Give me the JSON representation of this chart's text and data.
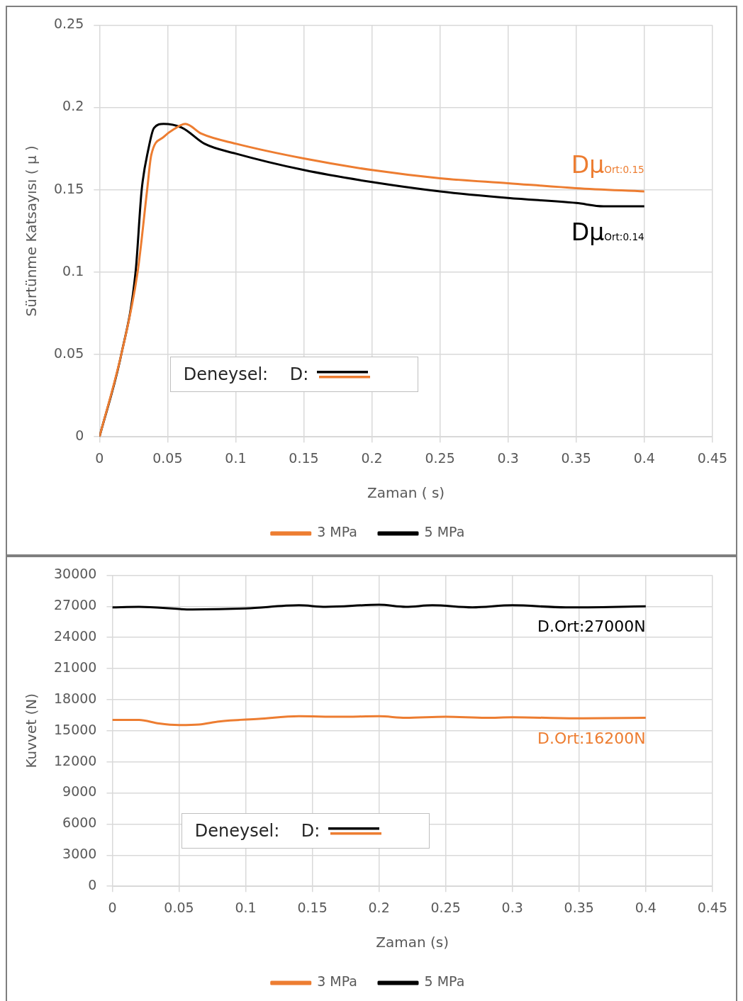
{
  "chart_data": [
    {
      "type": "line",
      "xlabel": "Zaman ( s)",
      "ylabel": "Sürtünme Katsayısı ( μ )",
      "xlim": [
        0,
        0.45
      ],
      "xticks": [
        0,
        0.05,
        0.1,
        0.15,
        0.2,
        0.25,
        0.3,
        0.35,
        0.4,
        0.45
      ],
      "ylim": [
        0,
        0.25
      ],
      "yticks": [
        0,
        0.05,
        0.1,
        0.15,
        0.2,
        0.25
      ],
      "grid": true,
      "legend": "bottom",
      "marker": "none",
      "line_style": "solid",
      "annotations": [
        {
          "text": "Dμ$_{Ort:0.15}$",
          "y": 0.15
        },
        {
          "text": "Dμ$_{Ort:0.14}$",
          "y": 0.14
        },
        "Deneysel:    D:"
      ],
      "series": [
        {
          "name": "3 MPa",
          "color": "#ed7d31",
          "x": [
            0,
            0.016,
            0.028,
            0.035,
            0.038,
            0.047,
            0.055,
            0.063,
            0.075,
            0.1,
            0.15,
            0.2,
            0.25,
            0.3,
            0.35,
            0.4
          ],
          "values": [
            0,
            0.05,
            0.1,
            0.15,
            0.171,
            0.182,
            0.187,
            0.19,
            0.184,
            0.178,
            0.169,
            0.162,
            0.157,
            0.154,
            0.151,
            0.149
          ]
        },
        {
          "name": "5 MPa",
          "color": "#000000",
          "x": [
            0,
            0.016,
            0.0265,
            0.031,
            0.036,
            0.04,
            0.047,
            0.061,
            0.077,
            0.1,
            0.15,
            0.2,
            0.25,
            0.3,
            0.35,
            0.37,
            0.4
          ],
          "values": [
            0,
            0.05,
            0.1,
            0.15,
            0.175,
            0.1875,
            0.19,
            0.1875,
            0.178,
            0.172,
            0.162,
            0.1547,
            0.149,
            0.145,
            0.142,
            0.14,
            0.14
          ]
        }
      ]
    },
    {
      "type": "line",
      "xlabel": "Zaman (s)",
      "ylabel": "Kuvvet (N)",
      "xlim": [
        0,
        0.45
      ],
      "xticks": [
        0,
        0.05,
        0.1,
        0.15,
        0.2,
        0.25,
        0.3,
        0.35,
        0.4,
        0.45
      ],
      "ylim": [
        0,
        30000
      ],
      "yticks": [
        0,
        3000,
        6000,
        9000,
        12000,
        15000,
        18000,
        21000,
        24000,
        27000,
        30000
      ],
      "grid": true,
      "legend": "bottom",
      "marker": "none",
      "line_style": "solid",
      "annotations": [
        {
          "text": "D.Ort:27000N",
          "y": 27000
        },
        {
          "text": "D.Ort:16200N",
          "y": 16200
        },
        "Deneysel:    D:"
      ],
      "series": [
        {
          "name": "3 MPa",
          "color": "#ed7d31",
          "x": [
            0,
            0.02,
            0.035,
            0.05,
            0.065,
            0.08,
            0.11,
            0.14,
            0.17,
            0.2,
            0.22,
            0.25,
            0.28,
            0.3,
            0.35,
            0.4
          ],
          "values": [
            16050,
            16050,
            15700,
            15550,
            15600,
            15900,
            16150,
            16400,
            16350,
            16400,
            16250,
            16350,
            16250,
            16300,
            16200,
            16250
          ]
        },
        {
          "name": "5 MPa",
          "color": "#000000",
          "x": [
            0,
            0.02,
            0.06,
            0.1,
            0.14,
            0.16,
            0.2,
            0.22,
            0.24,
            0.27,
            0.3,
            0.34,
            0.4
          ],
          "values": [
            26900,
            26950,
            26700,
            26800,
            27100,
            26950,
            27150,
            26950,
            27100,
            26900,
            27100,
            26900,
            27000
          ]
        }
      ]
    }
  ]
}
